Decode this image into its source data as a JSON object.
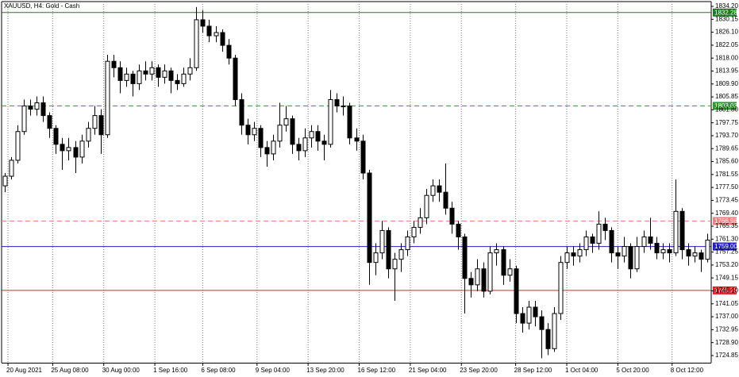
{
  "chart_data": {
    "type": "candlestick",
    "title": "XAUUSD, H4:  Gold - Cash",
    "grid": "vertical",
    "bull_color": "#ffffff",
    "bear_color": "#000000",
    "ylim": [
      1722.6,
      1835.7
    ],
    "yticks": [
      {
        "value": 1834.2,
        "label": "1834.20"
      },
      1830.15,
      {
        "value": 1826.1,
        "label": "1826.10"
      },
      1822.05,
      {
        "value": 1818,
        "label": "1818.00"
      },
      1813.95,
      {
        "value": 1809.9,
        "label": "1809.90"
      },
      1805.85,
      {
        "value": 1801.8,
        "label": "1801.80"
      },
      1797.75,
      {
        "value": 1793.7,
        "label": "1793.70"
      },
      1789.65,
      {
        "value": 1785.6,
        "label": "1785.60"
      },
      1781.55,
      {
        "value": 1777.5,
        "label": "1777.50"
      },
      1773.45,
      {
        "value": 1769.4,
        "label": "1769.40"
      },
      1765.35,
      {
        "value": 1761.3,
        "label": "1761.30"
      },
      1757.25,
      {
        "value": 1753.2,
        "label": "1753.20"
      },
      1749.15,
      {
        "value": 1745.1,
        "label": "1745.10"
      },
      1741.05,
      {
        "value": 1737,
        "label": "1737.00"
      },
      1732.95,
      {
        "value": 1728.9,
        "label": "1728.90"
      },
      1724.85
    ],
    "xlim": [
      -0.5,
      110.5
    ],
    "xticks": [
      {
        "value": 0.5,
        "label": "20 Aug 2021"
      },
      {
        "value": 7.5,
        "label": "25 Aug 08:00"
      },
      {
        "value": 15.5,
        "label": "30 Aug 00:00"
      },
      {
        "value": 23.5,
        "label": "1 Sep 16:00"
      },
      {
        "value": 31,
        "label": "6 Sep 08:00"
      },
      {
        "value": 39.5,
        "label": "9 Sep 04:00"
      },
      {
        "value": 47.5,
        "label": "13 Sep 20:00"
      },
      {
        "value": 55.5,
        "label": "16 Sep 12:00"
      },
      {
        "value": 63.5,
        "label": "21 Sep 04:00"
      },
      {
        "value": 71.5,
        "label": "23 Sep 20:00"
      },
      {
        "value": 80,
        "label": "28 Sep 12:00"
      },
      {
        "value": 88,
        "label": "1 Oct 04:00"
      },
      {
        "value": 96,
        "label": "5 Oct 20:00"
      },
      {
        "value": 104.5,
        "label": "8 Oct 12:00"
      }
    ],
    "levels": [
      {
        "value": 1832.28,
        "color": "#1e7a1e",
        "dashed": false
      },
      {
        "value": 1803.03,
        "color": "#2e9a2e",
        "dashed": true
      },
      {
        "value": 1766.98,
        "color": "#f08080",
        "dashed": true
      },
      {
        "value": 1759,
        "label": "1759.00",
        "color": "#2020c0",
        "dashed": false
      },
      {
        "value": 1745.25,
        "color": "#e02020",
        "dashed": false
      }
    ],
    "candles": [
      [
        1778,
        1782,
        1776,
        1781
      ],
      [
        1781,
        1787,
        1780,
        1786
      ],
      [
        1786,
        1797,
        1785,
        1795
      ],
      [
        1795,
        1805,
        1794,
        1803
      ],
      [
        1803,
        1805,
        1800,
        1802
      ],
      [
        1802,
        1806,
        1800,
        1804
      ],
      [
        1804,
        1806,
        1798,
        1800
      ],
      [
        1800,
        1801,
        1793,
        1796
      ],
      [
        1796,
        1797,
        1788,
        1791
      ],
      [
        1791,
        1793,
        1783,
        1789
      ],
      [
        1789,
        1793,
        1786,
        1790
      ],
      [
        1790,
        1792,
        1782,
        1787
      ],
      [
        1787,
        1794,
        1785,
        1792
      ],
      [
        1792,
        1798,
        1790,
        1796
      ],
      [
        1796,
        1803,
        1794,
        1800
      ],
      [
        1800,
        1802,
        1788,
        1794
      ],
      [
        1794,
        1819,
        1793,
        1817
      ],
      [
        1817,
        1819,
        1812,
        1815
      ],
      [
        1815,
        1817,
        1807,
        1811
      ],
      [
        1811,
        1815,
        1809,
        1813
      ],
      [
        1813,
        1814,
        1806,
        1810
      ],
      [
        1810,
        1816,
        1808,
        1814
      ],
      [
        1814,
        1817,
        1811,
        1813
      ],
      [
        1813,
        1817,
        1811,
        1815
      ],
      [
        1815,
        1816,
        1809,
        1812
      ],
      [
        1812,
        1816,
        1810,
        1814
      ],
      [
        1814,
        1815,
        1807,
        1811
      ],
      [
        1811,
        1813,
        1808,
        1810
      ],
      [
        1810,
        1815,
        1809,
        1813
      ],
      [
        1813,
        1818,
        1811,
        1815
      ],
      [
        1815,
        1834,
        1814,
        1830
      ],
      [
        1830,
        1833,
        1826,
        1828
      ],
      [
        1828,
        1830,
        1823,
        1825
      ],
      [
        1825,
        1828,
        1823,
        1826
      ],
      [
        1826,
        1827,
        1820,
        1822
      ],
      [
        1822,
        1824,
        1816,
        1818
      ],
      [
        1818,
        1819,
        1803,
        1805
      ],
      [
        1805,
        1807,
        1794,
        1797
      ],
      [
        1797,
        1799,
        1791,
        1794
      ],
      [
        1794,
        1798,
        1792,
        1796
      ],
      [
        1796,
        1797,
        1787,
        1790
      ],
      [
        1790,
        1792,
        1784,
        1788
      ],
      [
        1788,
        1794,
        1786,
        1792
      ],
      [
        1792,
        1804,
        1790,
        1797
      ],
      [
        1797,
        1803,
        1795,
        1799
      ],
      [
        1799,
        1800,
        1788,
        1791
      ],
      [
        1791,
        1793,
        1786,
        1789
      ],
      [
        1789,
        1796,
        1787,
        1793
      ],
      [
        1793,
        1797,
        1790,
        1795
      ],
      [
        1795,
        1797,
        1789,
        1792
      ],
      [
        1792,
        1794,
        1786,
        1791
      ],
      [
        1791,
        1808,
        1790,
        1805
      ],
      [
        1805,
        1807,
        1801,
        1803
      ],
      [
        1803,
        1806,
        1800,
        1803
      ],
      [
        1803,
        1804,
        1791,
        1793
      ],
      [
        1793,
        1796,
        1789,
        1792
      ],
      [
        1792,
        1794,
        1780,
        1782
      ],
      [
        1782,
        1783,
        1747,
        1754
      ],
      [
        1754,
        1760,
        1750,
        1757
      ],
      [
        1757,
        1767,
        1755,
        1764
      ],
      [
        1764,
        1765,
        1749,
        1752
      ],
      [
        1752,
        1757,
        1742,
        1755
      ],
      [
        1755,
        1760,
        1751,
        1758
      ],
      [
        1758,
        1764,
        1756,
        1762
      ],
      [
        1762,
        1767,
        1760,
        1765
      ],
      [
        1765,
        1771,
        1763,
        1768
      ],
      [
        1768,
        1777,
        1766,
        1775
      ],
      [
        1775,
        1780,
        1773,
        1778
      ],
      [
        1778,
        1780,
        1773,
        1776
      ],
      [
        1776,
        1785,
        1769,
        1771
      ],
      [
        1771,
        1773,
        1763,
        1766
      ],
      [
        1766,
        1767,
        1758,
        1762
      ],
      [
        1762,
        1763,
        1738,
        1749
      ],
      [
        1749,
        1751,
        1743,
        1747
      ],
      [
        1747,
        1755,
        1745,
        1752
      ],
      [
        1752,
        1754,
        1743,
        1745
      ],
      [
        1745,
        1759,
        1744,
        1757
      ],
      [
        1757,
        1760,
        1753,
        1758
      ],
      [
        1758,
        1759,
        1747,
        1750
      ],
      [
        1750,
        1755,
        1748,
        1752
      ],
      [
        1752,
        1753,
        1735,
        1738
      ],
      [
        1738,
        1740,
        1732,
        1735
      ],
      [
        1735,
        1742,
        1733,
        1740
      ],
      [
        1740,
        1742,
        1734,
        1737
      ],
      [
        1737,
        1739,
        1724,
        1733
      ],
      [
        1733,
        1735,
        1725,
        1727
      ],
      [
        1727,
        1740,
        1726,
        1738
      ],
      [
        1738,
        1756,
        1736,
        1754
      ],
      [
        1754,
        1759,
        1752,
        1757
      ],
      [
        1757,
        1759,
        1753,
        1756
      ],
      [
        1756,
        1760,
        1754,
        1758
      ],
      [
        1758,
        1764,
        1756,
        1762
      ],
      [
        1762,
        1763,
        1757,
        1760
      ],
      [
        1760,
        1770,
        1758,
        1766
      ],
      [
        1766,
        1768,
        1761,
        1764
      ],
      [
        1764,
        1765,
        1754,
        1757
      ],
      [
        1757,
        1759,
        1752,
        1756
      ],
      [
        1756,
        1762,
        1754,
        1759
      ],
      [
        1759,
        1760,
        1749,
        1752
      ],
      [
        1752,
        1762,
        1751,
        1759
      ],
      [
        1759,
        1764,
        1757,
        1762
      ],
      [
        1762,
        1768,
        1758,
        1760
      ],
      [
        1760,
        1762,
        1755,
        1757
      ],
      [
        1757,
        1760,
        1755,
        1758
      ],
      [
        1758,
        1760,
        1754,
        1757
      ],
      [
        1757,
        1780,
        1756,
        1770
      ],
      [
        1770,
        1771,
        1755,
        1758
      ],
      [
        1758,
        1760,
        1753,
        1756
      ],
      [
        1756,
        1759,
        1754,
        1757
      ],
      [
        1757,
        1758,
        1751,
        1755
      ],
      [
        1755,
        1763,
        1754,
        1761
      ]
    ]
  }
}
